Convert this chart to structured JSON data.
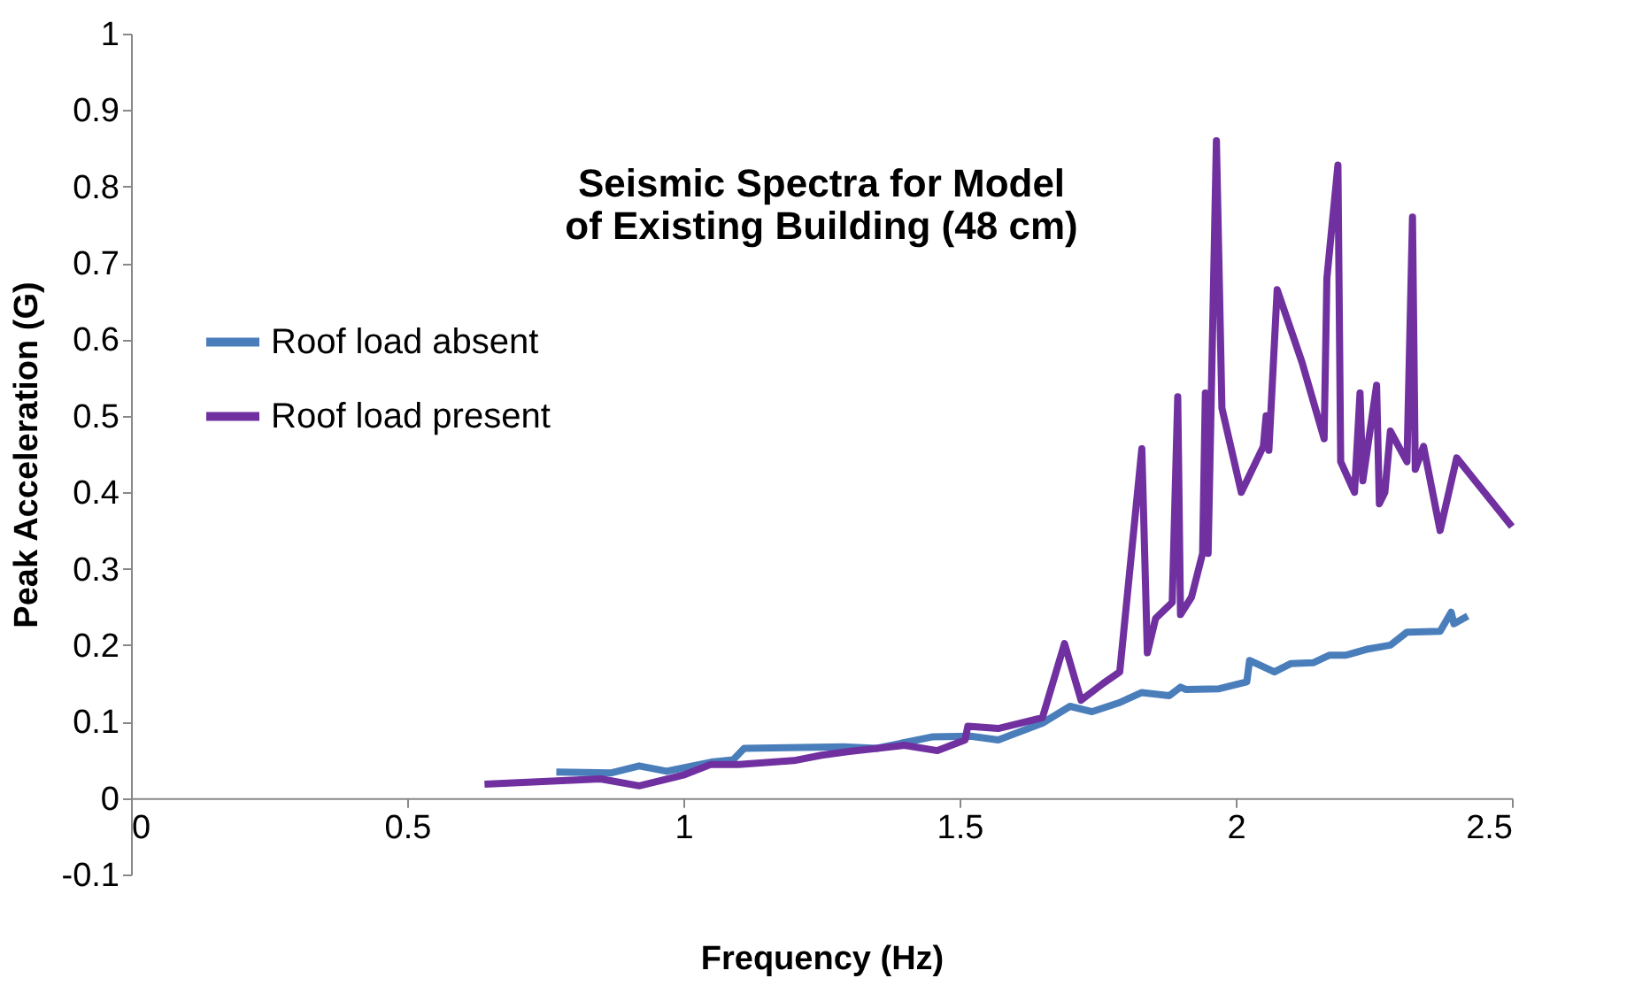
{
  "chart_data": {
    "type": "line",
    "title": [
      "Seismic Spectra for Model",
      "of Existing Building (48 cm)"
    ],
    "xlabel": "Frequency (Hz)",
    "ylabel": "Peak Acceleration (G)",
    "xlim": [
      0,
      2.5
    ],
    "xticks": [
      0,
      0.5,
      1,
      1.5,
      2,
      2.5
    ],
    "ylim": [
      -0.1,
      1
    ],
    "yticks": [
      -0.1,
      0,
      0.1,
      0.2,
      0.3,
      0.4,
      0.5,
      0.6,
      0.7,
      0.8,
      0.9,
      1
    ],
    "grid": false,
    "legend": "left",
    "marker": "none",
    "line_style": "solid",
    "series": [
      {
        "name": "Roof load absent",
        "color": "#4a7ebb",
        "x": [
          0.77,
          0.87,
          0.92,
          0.97,
          1.05,
          1.09,
          1.11,
          1.29,
          1.35,
          1.45,
          1.52,
          1.57,
          1.65,
          1.7,
          1.74,
          1.79,
          1.83,
          1.88,
          1.9,
          1.91,
          1.97,
          2.02,
          2.025,
          2.07,
          2.1,
          2.14,
          2.17,
          2.2,
          2.24,
          2.28,
          2.31,
          2.37,
          2.39,
          2.395,
          2.42
        ],
        "values": [
          0.034,
          0.033,
          0.042,
          0.035,
          0.047,
          0.05,
          0.065,
          0.067,
          0.065,
          0.08,
          0.081,
          0.076,
          0.098,
          0.12,
          0.113,
          0.125,
          0.138,
          0.134,
          0.145,
          0.142,
          0.143,
          0.152,
          0.18,
          0.165,
          0.176,
          0.177,
          0.187,
          0.187,
          0.195,
          0.2,
          0.217,
          0.218,
          0.243,
          0.228,
          0.238
        ]
      },
      {
        "name": "Roof load present",
        "color": "#7030a0",
        "x": [
          0.64,
          0.85,
          0.92,
          1.0,
          1.05,
          1.1,
          1.2,
          1.25,
          1.3,
          1.4,
          1.46,
          1.51,
          1.515,
          1.57,
          1.65,
          1.69,
          1.72,
          1.76,
          1.79,
          1.83,
          1.84,
          1.855,
          1.885,
          1.895,
          1.9,
          1.92,
          1.94,
          1.945,
          1.95,
          1.965,
          1.975,
          2.01,
          2.05,
          2.055,
          2.06,
          2.075,
          2.12,
          2.16,
          2.165,
          2.185,
          2.19,
          2.215,
          2.225,
          2.23,
          2.255,
          2.26,
          2.27,
          2.28,
          2.31,
          2.32,
          2.325,
          2.34,
          2.37,
          2.4,
          2.5
        ],
        "values": [
          0.018,
          0.025,
          0.016,
          0.03,
          0.044,
          0.044,
          0.049,
          0.056,
          0.061,
          0.069,
          0.062,
          0.076,
          0.094,
          0.091,
          0.105,
          0.202,
          0.128,
          0.15,
          0.165,
          0.457,
          0.19,
          0.235,
          0.256,
          0.525,
          0.24,
          0.263,
          0.32,
          0.53,
          0.32,
          0.86,
          0.51,
          0.4,
          0.46,
          0.5,
          0.455,
          0.665,
          0.57,
          0.47,
          0.68,
          0.828,
          0.44,
          0.4,
          0.53,
          0.415,
          0.54,
          0.385,
          0.4,
          0.48,
          0.44,
          0.76,
          0.43,
          0.46,
          0.35,
          0.445,
          0.355
        ]
      }
    ]
  }
}
